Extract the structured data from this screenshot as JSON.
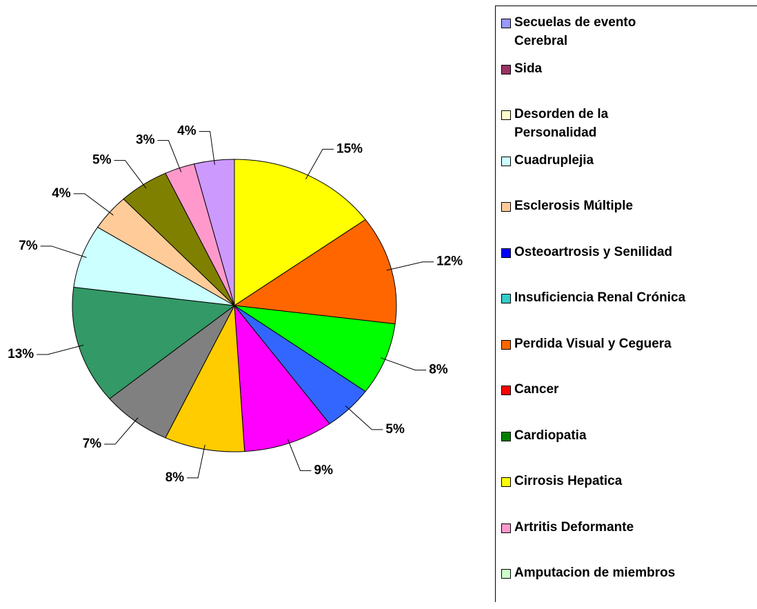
{
  "chart_data": {
    "type": "pie",
    "values": [
      15,
      12,
      8,
      5,
      9,
      8,
      7,
      13,
      7,
      4,
      5,
      3,
      4
    ],
    "value_labels": [
      "15%",
      "12%",
      "8%",
      "5%",
      "9%",
      "8%",
      "7%",
      "13%",
      "7%",
      "4%",
      "5%",
      "3%",
      "4%"
    ],
    "colors": [
      "#ffff00",
      "#ff6600",
      "#00ff00",
      "#3366ff",
      "#ff00ff",
      "#ffcc00",
      "#808080",
      "#339966",
      "#ccffff",
      "#ffcc99",
      "#808000",
      "#ff99cc",
      "#cc99ff"
    ],
    "legend": [
      {
        "name": "Secuelas de evento\nCerebral",
        "color": "#9999ff"
      },
      {
        "name": "Sida",
        "color": "#993366"
      },
      {
        "name": "Desorden de la\nPersonalidad",
        "color": "#ffffcc"
      },
      {
        "name": "Cuadruplejia",
        "color": "#ccffff"
      },
      {
        "name": "Esclerosis Múltiple",
        "color": "#ffcc99"
      },
      {
        "name": "Osteoartrosis y Senilidad",
        "color": "#0000ff"
      },
      {
        "name": "Insuficiencia Renal Crónica",
        "color": "#33cccc"
      },
      {
        "name": "Perdida Visual y Ceguera",
        "color": "#ff6600"
      },
      {
        "name": "Cancer",
        "color": "#ff0000"
      },
      {
        "name": "Cardiopatia",
        "color": "#008000"
      },
      {
        "name": "Cirrosis Hepatica",
        "color": "#ffff00"
      },
      {
        "name": "Artritis Deformante",
        "color": "#ff99cc"
      },
      {
        "name": "Amputacion de miembros",
        "color": "#ccffcc"
      }
    ]
  }
}
